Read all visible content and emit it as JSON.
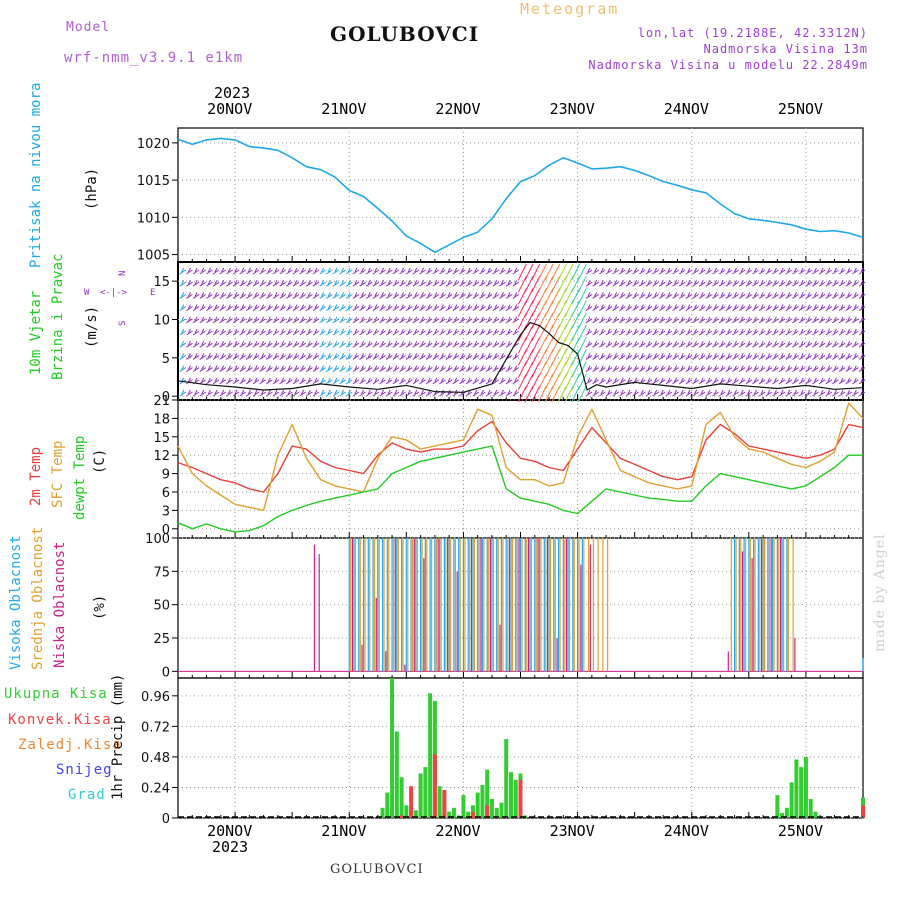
{
  "header": {
    "model_label": "Model",
    "model_name": "wrf-nmm_v3.9.1 e1km",
    "title": "GOLUBOVCI",
    "meteogram_label": "Meteogram",
    "lonlat": "lon,lat (19.2188E, 42.3312N)",
    "elevation": "Nadmorska Visina 13m",
    "model_elevation": "Nadmorska Visina u modelu 22.2849m"
  },
  "top_axis": {
    "year": "2023",
    "dates": [
      "20NOV",
      "21NOV",
      "22NOV",
      "23NOV",
      "24NOV",
      "25NOV"
    ]
  },
  "bottom_axis": {
    "year": "2023",
    "dates": [
      "20NOV",
      "21NOV",
      "22NOV",
      "23NOV",
      "24NOV",
      "25NOV"
    ]
  },
  "footer": {
    "station": "GOLUBOVCI"
  },
  "watermark": "made by Angel",
  "panels": {
    "pressure": {
      "ylabel_main": "Pritisak na nivou mora",
      "unit": "(hPa)"
    },
    "wind": {
      "ylabel_main": [
        "10m Vjetar",
        "Brzina i Pravac"
      ],
      "unit": "(m/s)",
      "compass_n": "N",
      "compass_w": "W",
      "compass_e": "E",
      "compass_s": "S",
      "compass_arrows": "<-|->"
    },
    "temp": {
      "ylabel_lines": [
        "2m Temp",
        "SFC Temp",
        "dewpt Temp"
      ],
      "unit": "(C)"
    },
    "cloud": {
      "ylabel_lines": [
        "Visoka Oblacnost",
        "Srednja Oblacnost",
        "Niska Oblacnost"
      ],
      "unit": "(%)"
    },
    "precip": {
      "ylabel": "1hr Precip (mm)",
      "legend": [
        "Ukupna Kisa",
        "Konvek.Kisa",
        "Zaledj.Kisa",
        "Snijeg",
        "Grad"
      ]
    }
  },
  "colors": {
    "pressure": "#1fa8e8",
    "temp2m": "#e8403a",
    "sfc": "#e0a030",
    "dewpt": "#22cc22",
    "high_cloud": "#22aaee",
    "mid_cloud": "#e0a030",
    "low_cloud": "#cc2288",
    "total_rain": "#33cc33",
    "conv_rain": "#ee4444",
    "frz_rain": "#ee8833",
    "snow": "#4444ee",
    "hail": "#33cccc",
    "model_label": "#b060d0",
    "meteogram": "#f0c070",
    "header_right": "#a040d0",
    "wind_purple": "#9030c0"
  },
  "chart_data": [
    {
      "type": "line",
      "title": "Pritisak na nivou mora",
      "ylabel": "(hPa)",
      "ylim": [
        1004,
        1022
      ],
      "yticks": [
        1005,
        1010,
        1015,
        1020
      ],
      "x_unit": "hours since 2023-11-19 12:00",
      "series": [
        {
          "name": "Pritisak na nivou mora",
          "x": [
            0,
            3,
            6,
            9,
            12,
            15,
            18,
            21,
            24,
            27,
            30,
            33,
            36,
            39,
            42,
            45,
            48,
            51,
            54,
            57,
            60,
            63,
            66,
            69,
            72,
            75,
            78,
            81,
            84,
            87,
            90,
            93,
            96,
            99,
            102,
            105,
            108,
            111,
            114,
            117,
            120,
            123,
            126,
            129,
            132,
            135,
            138,
            141,
            144
          ],
          "values": [
            1020.5,
            1019.8,
            1020.4,
            1020.6,
            1020.4,
            1019.5,
            1019.3,
            1019.0,
            1018.0,
            1016.8,
            1016.4,
            1015.4,
            1013.6,
            1012.8,
            1011.2,
            1009.5,
            1007.5,
            1006.5,
            1005.3,
            1006.3,
            1007.3,
            1008.0,
            1009.8,
            1012.5,
            1014.8,
            1015.6,
            1017.0,
            1018.0,
            1017.3,
            1016.5,
            1016.6,
            1016.8,
            1016.3,
            1015.6,
            1014.8,
            1014.3,
            1013.7,
            1013.3,
            1011.8,
            1010.5,
            1009.8,
            1009.6,
            1009.3,
            1009.0,
            1008.4,
            1008.1,
            1008.2,
            1007.9,
            1007.3
          ]
        }
      ]
    },
    {
      "type": "line",
      "title": "10m Vjetar Brzina i Pravac",
      "ylabel": "(m/s)",
      "ylim": [
        -0.5,
        17.5
      ],
      "yticks": [
        0,
        5,
        10,
        15
      ],
      "x_unit": "hours since 2023-11-19 12:00",
      "series": [
        {
          "name": "10m Vjetar",
          "x": [
            0,
            6,
            12,
            18,
            24,
            30,
            36,
            42,
            48,
            54,
            60,
            66,
            72,
            74,
            76,
            78,
            80,
            82,
            84,
            86,
            88,
            90,
            96,
            102,
            108,
            114,
            120,
            126,
            132,
            138,
            144
          ],
          "values": [
            2.0,
            1.5,
            1.2,
            0.8,
            1.0,
            1.6,
            1.2,
            0.9,
            1.4,
            0.6,
            0.5,
            1.6,
            8.0,
            9.6,
            9.2,
            8.2,
            7.0,
            6.6,
            5.5,
            0.8,
            1.5,
            1.2,
            1.8,
            1.4,
            1.0,
            1.6,
            1.3,
            1.0,
            1.4,
            0.9,
            1.1
          ]
        }
      ]
    },
    {
      "type": "line",
      "title": "2m Temp / SFC Temp / dewpt Temp",
      "ylabel": "(C)",
      "ylim": [
        -1.5,
        21
      ],
      "yticks": [
        0,
        3,
        6,
        9,
        12,
        15,
        18,
        21
      ],
      "x_unit": "hours since 2023-11-19 12:00",
      "series": [
        {
          "name": "2m Temp",
          "x": [
            0,
            3,
            6,
            9,
            12,
            15,
            18,
            21,
            24,
            27,
            30,
            33,
            36,
            39,
            42,
            45,
            48,
            51,
            54,
            57,
            60,
            63,
            66,
            69,
            72,
            75,
            78,
            81,
            84,
            87,
            90,
            93,
            96,
            99,
            102,
            105,
            108,
            111,
            114,
            117,
            120,
            123,
            126,
            129,
            132,
            135,
            138,
            141,
            144
          ],
          "values": [
            10.8,
            10.0,
            9.0,
            8.0,
            7.5,
            6.5,
            6.0,
            9.0,
            13.5,
            13.0,
            11.0,
            10.0,
            9.5,
            9.0,
            12.0,
            14.0,
            13.0,
            12.5,
            13.0,
            13.0,
            13.5,
            16.0,
            17.5,
            14.0,
            11.5,
            11.0,
            10.0,
            9.5,
            13.0,
            16.5,
            14.0,
            11.5,
            10.5,
            9.5,
            8.5,
            8.0,
            8.5,
            14.5,
            17.0,
            15.5,
            13.5,
            13.0,
            12.5,
            12.0,
            11.5,
            12.0,
            13.0,
            17.0,
            16.5
          ]
        },
        {
          "name": "SFC Temp",
          "x": [
            0,
            3,
            6,
            9,
            12,
            15,
            18,
            21,
            24,
            27,
            30,
            33,
            36,
            39,
            42,
            45,
            48,
            51,
            54,
            57,
            60,
            63,
            66,
            69,
            72,
            75,
            78,
            81,
            84,
            87,
            90,
            93,
            96,
            99,
            102,
            105,
            108,
            111,
            114,
            117,
            120,
            123,
            126,
            129,
            132,
            135,
            138,
            141,
            144
          ],
          "values": [
            13.5,
            9.0,
            7.0,
            5.5,
            4.0,
            3.5,
            3.0,
            12.0,
            17.0,
            11.5,
            8.0,
            7.0,
            6.5,
            6.0,
            11.5,
            15.0,
            14.5,
            13.0,
            13.5,
            14.0,
            14.5,
            19.5,
            18.5,
            10.0,
            8.0,
            8.0,
            7.0,
            7.5,
            15.0,
            19.5,
            14.5,
            9.5,
            8.5,
            7.5,
            7.0,
            6.5,
            7.0,
            17.0,
            19.0,
            15.0,
            13.0,
            12.5,
            11.5,
            10.5,
            10.0,
            11.0,
            12.5,
            20.5,
            18.0
          ]
        },
        {
          "name": "dewpt Temp",
          "x": [
            0,
            3,
            6,
            9,
            12,
            15,
            18,
            21,
            24,
            27,
            30,
            33,
            36,
            39,
            42,
            45,
            48,
            51,
            54,
            57,
            60,
            63,
            66,
            69,
            72,
            75,
            78,
            81,
            84,
            87,
            90,
            93,
            96,
            99,
            102,
            105,
            108,
            111,
            114,
            117,
            120,
            123,
            126,
            129,
            132,
            135,
            138,
            141,
            144
          ],
          "values": [
            1.0,
            0.0,
            0.8,
            0.0,
            -0.5,
            -0.3,
            0.5,
            2.0,
            3.0,
            3.8,
            4.5,
            5.0,
            5.5,
            6.0,
            6.5,
            9.0,
            10.0,
            11.0,
            11.5,
            12.0,
            12.5,
            13.0,
            13.5,
            6.5,
            5.0,
            4.5,
            4.0,
            3.0,
            2.5,
            4.5,
            6.5,
            6.0,
            5.5,
            5.0,
            4.8,
            4.5,
            4.5,
            7.0,
            9.0,
            8.5,
            8.0,
            7.5,
            7.0,
            6.5,
            7.0,
            8.5,
            10.0,
            12.0,
            12.0
          ]
        }
      ]
    },
    {
      "type": "bar",
      "title": "Visoka / Srednja / Niska Oblacnost",
      "ylabel": "(%)",
      "ylim": [
        -5,
        100
      ],
      "yticks": [
        0,
        25,
        50,
        75,
        100
      ],
      "x_unit": "hours since 2023-11-19 12:00",
      "series": [
        {
          "name": "Visoka Oblacnost",
          "x": [
            36,
            37,
            38,
            39,
            40,
            41,
            42,
            43,
            44,
            45,
            46,
            47,
            48,
            49,
            50,
            51,
            52,
            53,
            54,
            55,
            56,
            57,
            58,
            59,
            60,
            61,
            62,
            63,
            64,
            65,
            66,
            67,
            68,
            69,
            70,
            71,
            72,
            73,
            74,
            75,
            76,
            77,
            78,
            79,
            80,
            81,
            82,
            83,
            84,
            85,
            117,
            118,
            119,
            120,
            121,
            122,
            123,
            124,
            125,
            126,
            127,
            128,
            144
          ],
          "values": [
            100,
            100,
            100,
            100,
            100,
            100,
            100,
            100,
            100,
            100,
            100,
            100,
            100,
            100,
            100,
            100,
            100,
            100,
            100,
            100,
            100,
            100,
            100,
            100,
            100,
            100,
            100,
            100,
            100,
            100,
            100,
            100,
            100,
            100,
            100,
            100,
            100,
            100,
            100,
            100,
            100,
            100,
            100,
            100,
            100,
            100,
            100,
            100,
            100,
            100,
            100,
            100,
            100,
            100,
            100,
            100,
            100,
            100,
            100,
            100,
            100,
            100,
            10
          ]
        },
        {
          "name": "Srednja Oblacnost",
          "x": [
            36,
            37,
            38,
            39,
            40,
            41,
            42,
            43,
            44,
            45,
            46,
            47,
            48,
            49,
            50,
            51,
            52,
            53,
            54,
            55,
            56,
            57,
            58,
            59,
            60,
            61,
            62,
            63,
            64,
            65,
            66,
            67,
            68,
            69,
            70,
            71,
            72,
            73,
            74,
            75,
            76,
            77,
            78,
            79,
            80,
            81,
            82,
            83,
            84,
            85,
            86,
            87,
            88,
            89,
            90,
            116,
            117,
            118,
            119,
            120,
            121,
            122,
            123,
            124,
            125,
            126,
            127,
            128,
            129
          ],
          "values": [
            100,
            100,
            100,
            100,
            100,
            100,
            100,
            100,
            100,
            100,
            100,
            100,
            100,
            100,
            100,
            100,
            100,
            100,
            100,
            100,
            100,
            100,
            100,
            100,
            100,
            100,
            100,
            100,
            100,
            100,
            100,
            100,
            100,
            100,
            100,
            100,
            100,
            100,
            100,
            100,
            100,
            100,
            100,
            100,
            100,
            100,
            100,
            100,
            100,
            100,
            100,
            100,
            100,
            100,
            100,
            100,
            100,
            100,
            100,
            100,
            100,
            100,
            100,
            100,
            100,
            100,
            100,
            100,
            100
          ]
        },
        {
          "name": "Niska Oblacnost",
          "x": [
            29,
            30,
            37,
            39,
            42,
            44,
            46,
            48,
            50,
            52,
            55,
            57,
            59,
            62,
            64,
            66,
            68,
            70,
            72,
            74,
            76,
            78,
            80,
            82,
            85,
            87,
            116,
            119,
            121,
            123,
            125,
            127,
            130
          ],
          "values": [
            95,
            88,
            100,
            20,
            55,
            15,
            100,
            5,
            100,
            85,
            100,
            100,
            75,
            100,
            100,
            100,
            35,
            100,
            100,
            100,
            100,
            100,
            25,
            100,
            80,
            95,
            15,
            90,
            85,
            100,
            100,
            100,
            25
          ]
        }
      ]
    },
    {
      "type": "bar",
      "title": "1hr Precip",
      "ylabel": "1hr Precip (mm)",
      "ylim": [
        0,
        1.1
      ],
      "yticks": [
        0,
        0.24,
        0.48,
        0.72,
        0.96
      ],
      "x_unit": "hours since 2023-11-19 12:00",
      "series": [
        {
          "name": "Ukupna Kisa",
          "x": [
            43,
            44,
            45,
            46,
            47,
            48,
            49,
            50,
            51,
            52,
            53,
            54,
            55,
            56,
            57,
            58,
            59,
            60,
            61,
            62,
            63,
            64,
            65,
            66,
            67,
            68,
            69,
            70,
            71,
            72,
            73,
            126,
            127,
            128,
            129,
            130,
            131,
            132,
            133,
            134,
            144
          ],
          "values": [
            0.08,
            0.2,
            1.1,
            0.68,
            0.32,
            0.1,
            0.08,
            0.06,
            0.35,
            0.4,
            0.98,
            0.92,
            0.25,
            0.2,
            0.05,
            0.08,
            0.02,
            0.18,
            0.05,
            0.1,
            0.2,
            0.26,
            0.38,
            0.15,
            0.08,
            0.12,
            0.62,
            0.36,
            0.3,
            0.35,
            0.02,
            0.18,
            0.04,
            0.08,
            0.28,
            0.46,
            0.4,
            0.48,
            0.15,
            0.05,
            0.16
          ]
        },
        {
          "name": "Konvek.Kisa",
          "x": [
            47,
            49,
            54,
            56,
            62,
            65,
            72,
            144
          ],
          "values": [
            0.02,
            0.25,
            0.5,
            0.22,
            0.05,
            0.1,
            0.3,
            0.1
          ]
        },
        {
          "name": "Zaledj.Kisa",
          "x": [],
          "values": []
        },
        {
          "name": "Snijeg",
          "x": [],
          "values": []
        },
        {
          "name": "Grad",
          "x": [],
          "values": []
        }
      ]
    }
  ]
}
